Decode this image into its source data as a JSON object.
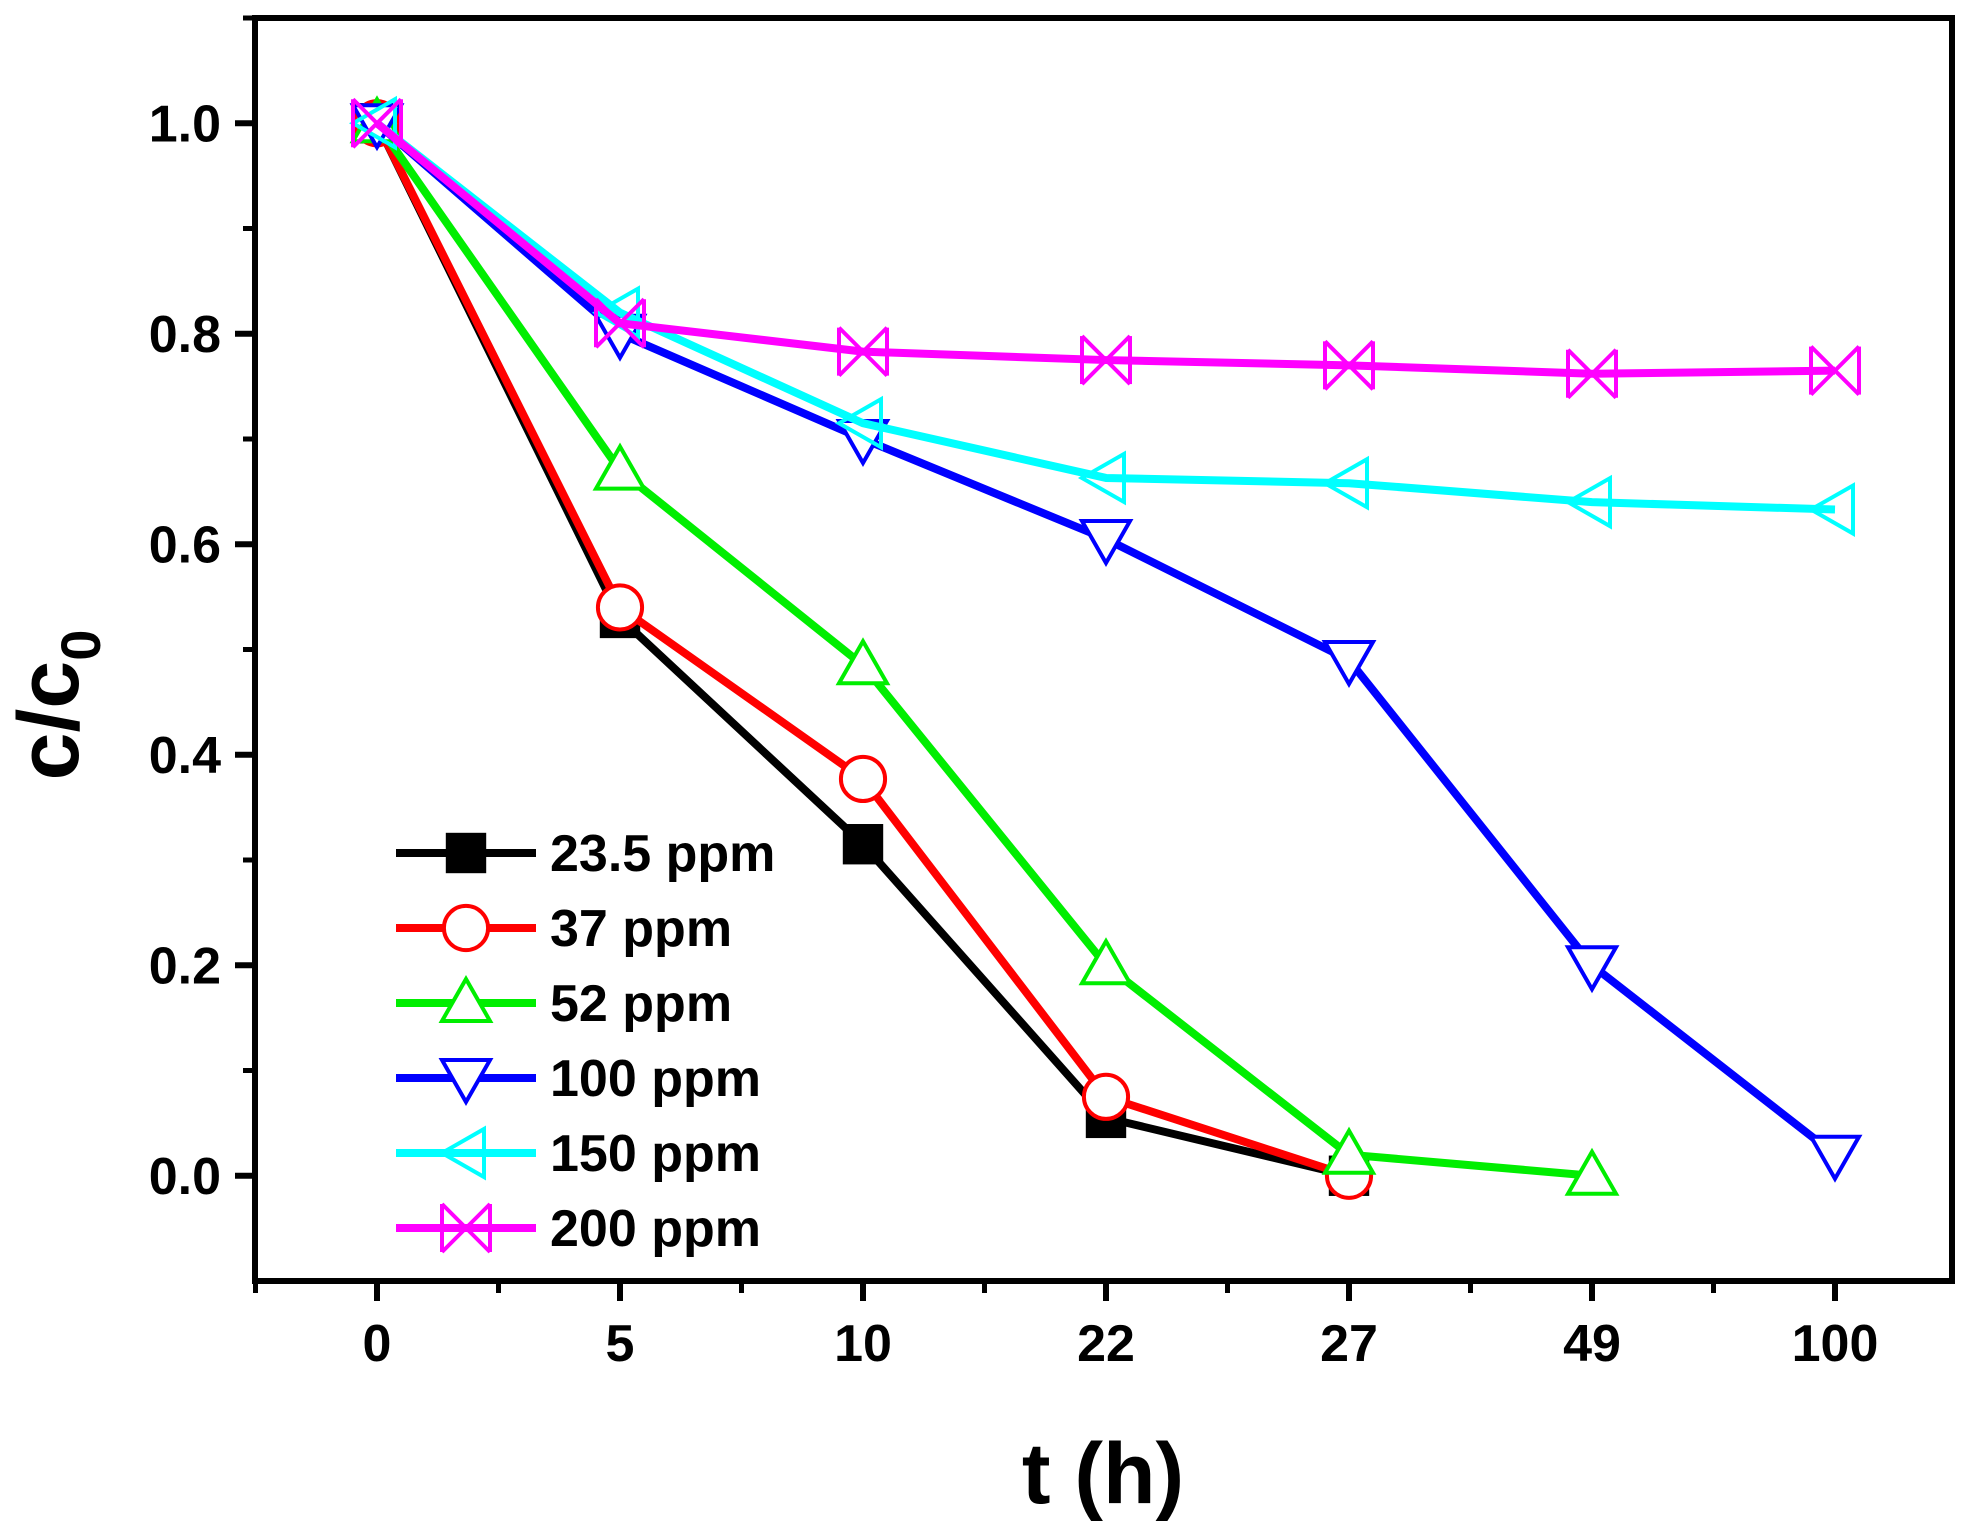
{
  "chart_data": {
    "type": "line",
    "x_ticks": [
      "0",
      "5",
      "10",
      "22",
      "27",
      "49",
      "100"
    ],
    "xlabel": "t (h)",
    "ylabel_main": "c/c",
    "ylabel_sub": "0",
    "ylim": [
      -0.1,
      1.1
    ],
    "y_ticks": [
      "0.0",
      "0.2",
      "0.4",
      "0.6",
      "0.8",
      "1.0"
    ],
    "grid": false,
    "legend_position": "bottom-left",
    "series": [
      {
        "name": "23.5 ppm",
        "color": "#000000",
        "marker": "square-filled",
        "x": [
          "0",
          "5",
          "10",
          "22",
          "27"
        ],
        "values": [
          1.0,
          0.53,
          0.315,
          0.055,
          0.0
        ]
      },
      {
        "name": "37 ppm",
        "color": "#ff0000",
        "marker": "circle-open",
        "x": [
          "0",
          "5",
          "10",
          "22",
          "27"
        ],
        "values": [
          1.0,
          0.54,
          0.377,
          0.075,
          0.0
        ]
      },
      {
        "name": "52 ppm",
        "color": "#00ee00",
        "marker": "triangle-up-open",
        "x": [
          "0",
          "5",
          "10",
          "22",
          "27",
          "49"
        ],
        "values": [
          1.0,
          0.67,
          0.485,
          0.2,
          0.02,
          0.0
        ]
      },
      {
        "name": "100 ppm",
        "color": "#0000ff",
        "marker": "triangle-down-open",
        "x": [
          "0",
          "5",
          "10",
          "22",
          "27",
          "49",
          "100"
        ],
        "values": [
          1.0,
          0.8,
          0.7,
          0.605,
          0.49,
          0.2,
          0.02
        ]
      },
      {
        "name": "150 ppm",
        "color": "#00ffff",
        "marker": "triangle-left-open",
        "x": [
          "0",
          "5",
          "10",
          "22",
          "27",
          "49",
          "100"
        ],
        "values": [
          1.0,
          0.82,
          0.715,
          0.663,
          0.658,
          0.64,
          0.633
        ]
      },
      {
        "name": "200 ppm",
        "color": "#ff00ff",
        "marker": "x-open",
        "x": [
          "0",
          "5",
          "10",
          "22",
          "27",
          "49",
          "100"
        ],
        "values": [
          1.0,
          0.81,
          0.783,
          0.775,
          0.77,
          0.762,
          0.765
        ]
      }
    ]
  }
}
